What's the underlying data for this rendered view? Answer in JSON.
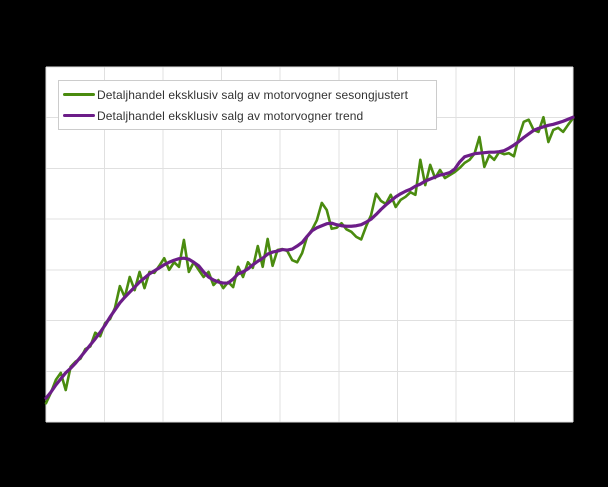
{
  "window": {
    "background_color": "#000000"
  },
  "plot": {
    "background_color": "#ffffff",
    "grid_color": "#e0e0e0",
    "border_color": "#e0e0e0"
  },
  "legend": {
    "background_color": "#ffffff",
    "border_color": "#cccccc",
    "text_color": "#333333",
    "items": [
      {
        "label": "Detaljhandel eksklusiv salg av motorvogner sesongjustert",
        "color": "#4a8b0f"
      },
      {
        "label": "Detaljhandel eksklusiv salg av motorvogner trend",
        "color": "#6c1d88"
      }
    ]
  },
  "chart_data": {
    "type": "line",
    "title": "",
    "xlabel": "",
    "ylabel": "",
    "x_unit": "month_index",
    "x_count": 108,
    "x_gridline_interval_months": 12,
    "ylim": [
      60,
      130
    ],
    "y_gridline_step": 10,
    "axis_tick_labels_visible": false,
    "grid": true,
    "legend_position": "top-left-inside",
    "series": [
      {
        "name": "Detaljhandel eksklusiv salg av motorvogner sesongjustert",
        "color": "#4a8b0f",
        "values": [
          63.7,
          65.8,
          68.3,
          69.7,
          66.3,
          70.9,
          71.9,
          72.5,
          74.4,
          74.9,
          77.6,
          76.9,
          79.5,
          80.3,
          82.5,
          86.8,
          84.6,
          88.6,
          86.0,
          89.6,
          86.4,
          89.6,
          89.4,
          90.8,
          92.3,
          90.0,
          91.5,
          90.6,
          95.9,
          89.6,
          91.5,
          90.0,
          88.6,
          89.6,
          87.0,
          88.0,
          86.4,
          87.6,
          86.6,
          90.6,
          88.6,
          91.5,
          90.4,
          94.7,
          90.6,
          96.1,
          90.8,
          93.9,
          94.1,
          93.7,
          91.9,
          91.5,
          93.3,
          96.5,
          97.9,
          99.8,
          103.2,
          101.8,
          98.1,
          98.3,
          99.2,
          98.0,
          97.5,
          96.5,
          96.0,
          98.6,
          100.8,
          105.0,
          103.6,
          103.0,
          104.8,
          102.4,
          103.8,
          104.4,
          105.3,
          104.8,
          111.7,
          106.7,
          110.7,
          108.1,
          109.7,
          108.1,
          108.7,
          109.3,
          110.1,
          111.1,
          111.7,
          112.9,
          116.2,
          110.3,
          112.6,
          111.7,
          113.2,
          112.8,
          113.0,
          112.4,
          116.2,
          119.2,
          119.6,
          117.6,
          117.2,
          120.1,
          115.2,
          117.6,
          118.0,
          117.2,
          118.6,
          119.9
        ]
      },
      {
        "name": "Detaljhandel eksklusiv salg av motorvogner trend",
        "color": "#6c1d88",
        "values": [
          64.7,
          65.9,
          67.3,
          68.5,
          69.7,
          70.6,
          71.6,
          72.8,
          74.0,
          75.2,
          76.4,
          77.7,
          79.1,
          80.7,
          82.1,
          83.5,
          84.6,
          85.6,
          86.6,
          87.6,
          88.4,
          89.2,
          89.8,
          90.4,
          91.0,
          91.5,
          91.9,
          92.2,
          92.3,
          92.1,
          91.5,
          90.8,
          89.6,
          88.6,
          88.0,
          87.6,
          87.4,
          87.4,
          88.2,
          89.2,
          89.6,
          90.2,
          91.0,
          91.7,
          92.3,
          93.1,
          93.5,
          93.7,
          94.0,
          93.9,
          94.1,
          94.7,
          95.4,
          96.6,
          97.7,
          98.3,
          98.7,
          99.1,
          99.2,
          98.9,
          98.7,
          98.6,
          98.6,
          98.7,
          98.9,
          99.4,
          100.0,
          100.9,
          101.9,
          102.8,
          103.6,
          104.4,
          105.0,
          105.5,
          105.9,
          106.5,
          106.9,
          107.5,
          107.9,
          108.3,
          108.7,
          108.9,
          109.2,
          109.9,
          111.3,
          112.3,
          112.6,
          112.9,
          113.0,
          113.1,
          113.2,
          113.2,
          113.3,
          113.5,
          114.0,
          114.6,
          115.3,
          116.1,
          116.8,
          117.5,
          117.9,
          118.2,
          118.5,
          118.7,
          119.0,
          119.3,
          119.7,
          120.1
        ]
      }
    ]
  }
}
